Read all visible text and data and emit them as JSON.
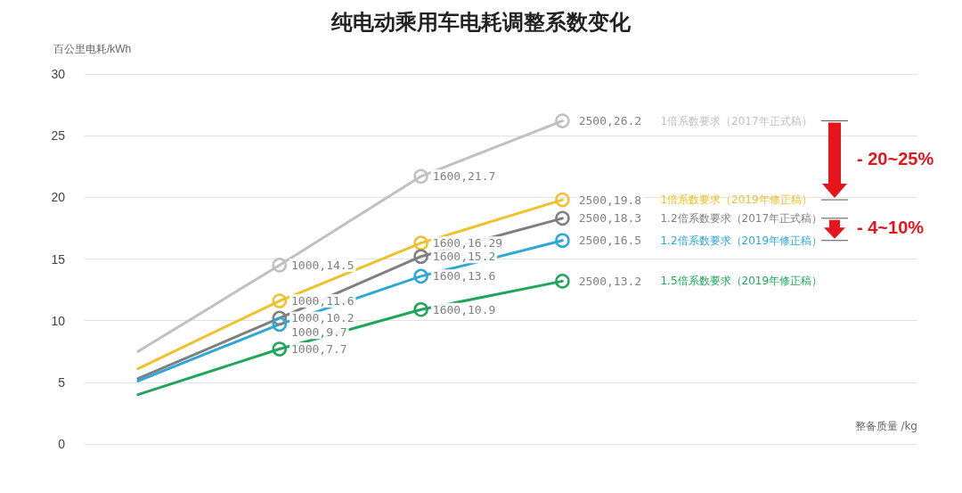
{
  "chart_data": {
    "type": "line",
    "title": "纯电动乘用车电耗调整系数变化",
    "ylabel": "百公里电耗/kWh",
    "categories": [
      null,
      null,
      null,
      null
    ],
    "ylim": [
      0,
      30
    ],
    "yticks": [
      0,
      5,
      10,
      15,
      20,
      25,
      30
    ],
    "grid": "y",
    "tick_labels": "y",
    "marker": "circle",
    "line_style": "solid",
    "legend": "right",
    "series": [
      {
        "name": "1倍系数要求（2017年正式稿）",
        "color": "#c0c0c0",
        "values": [
          7.5,
          14.5,
          21.7,
          26.2
        ],
        "value_labels": [
          null,
          "1000,14.5",
          "1600,21.7",
          "2500,26.2"
        ]
      },
      {
        "name": "1倍系数要求（2019年修正稿）",
        "color": "#efc12a",
        "values": [
          6.1,
          11.6,
          16.29,
          19.8
        ],
        "value_labels": [
          null,
          "1000,11.6",
          "1600,16.29",
          "2500,19.8"
        ]
      },
      {
        "name": "1.2倍系数要求（2017年正式稿）",
        "color": "#7f7f7f",
        "values": [
          5.3,
          10.2,
          15.2,
          18.3
        ],
        "value_labels": [
          null,
          "1000,10.2",
          "1600,15.2",
          "2500,18.3"
        ]
      },
      {
        "name": "1.2倍系数要求（2019年修正稿）",
        "color": "#2ba8d6",
        "values": [
          5.1,
          9.7,
          13.6,
          16.5
        ],
        "value_labels": [
          null,
          "1000,9.7",
          "1600,13.6",
          "2500,16.5"
        ]
      },
      {
        "name": "1.5倍系数要求（2019年修正稿）",
        "color": "#1fa65a",
        "values": [
          4.0,
          7.7,
          10.9,
          13.2
        ],
        "value_labels": [
          null,
          "1000,7.7",
          "1600,10.9",
          "2500,13.2"
        ]
      }
    ],
    "annotations": [
      "- 20~25%",
      "- 4~10%",
      "整备质量 /kg"
    ]
  }
}
